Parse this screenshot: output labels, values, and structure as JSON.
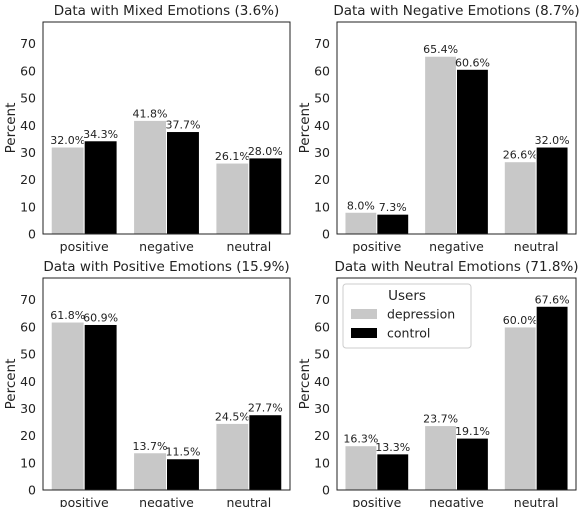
{
  "colors": {
    "depression": "#c8c8c8",
    "control": "#000000",
    "text": "#222222"
  },
  "legend": {
    "title": "Users",
    "items": [
      "depression",
      "control"
    ]
  },
  "chart_data": [
    {
      "type": "bar",
      "title": "Data with Mixed Emotions (3.6%)",
      "ylabel": "Percent",
      "ylim": [
        0,
        78
      ],
      "yticks": [
        0,
        10,
        20,
        30,
        40,
        50,
        60,
        70
      ],
      "categories": [
        "positive",
        "negative",
        "neutral"
      ],
      "series": [
        {
          "name": "depression",
          "values": [
            32.0,
            41.8,
            26.1
          ],
          "labels": [
            "32.0%",
            "41.8%",
            "26.1%"
          ]
        },
        {
          "name": "control",
          "values": [
            34.3,
            37.7,
            28.0
          ],
          "labels": [
            "34.3%",
            "37.7%",
            "28.0%"
          ]
        }
      ],
      "legend": false
    },
    {
      "type": "bar",
      "title": "Data with Negative Emotions (8.7%)",
      "ylabel": "Percent",
      "ylim": [
        0,
        78
      ],
      "yticks": [
        0,
        10,
        20,
        30,
        40,
        50,
        60,
        70
      ],
      "categories": [
        "positive",
        "negative",
        "neutral"
      ],
      "series": [
        {
          "name": "depression",
          "values": [
            8.0,
            65.4,
            26.6
          ],
          "labels": [
            "8.0%",
            "65.4%",
            "26.6%"
          ]
        },
        {
          "name": "control",
          "values": [
            7.3,
            60.6,
            32.0
          ],
          "labels": [
            "7.3%",
            "60.6%",
            "32.0%"
          ]
        }
      ],
      "legend": false
    },
    {
      "type": "bar",
      "title": "Data with Positive Emotions (15.9%)",
      "ylabel": "Percent",
      "ylim": [
        0,
        78
      ],
      "yticks": [
        0,
        10,
        20,
        30,
        40,
        50,
        60,
        70
      ],
      "categories": [
        "positive",
        "negative",
        "neutral"
      ],
      "series": [
        {
          "name": "depression",
          "values": [
            61.8,
            13.7,
            24.5
          ],
          "labels": [
            "61.8%",
            "13.7%",
            "24.5%"
          ]
        },
        {
          "name": "control",
          "values": [
            60.9,
            11.5,
            27.7
          ],
          "labels": [
            "60.9%",
            "11.5%",
            "27.7%"
          ]
        }
      ],
      "legend": false
    },
    {
      "type": "bar",
      "title": "Data with Neutral Emotions (71.8%)",
      "ylabel": "Percent",
      "ylim": [
        0,
        78
      ],
      "yticks": [
        0,
        10,
        20,
        30,
        40,
        50,
        60,
        70
      ],
      "categories": [
        "positive",
        "negative",
        "neutral"
      ],
      "series": [
        {
          "name": "depression",
          "values": [
            16.3,
            23.7,
            60.0
          ],
          "labels": [
            "16.3%",
            "23.7%",
            "60.0%"
          ]
        },
        {
          "name": "control",
          "values": [
            13.3,
            19.1,
            67.6
          ],
          "labels": [
            "13.3%",
            "19.1%",
            "67.6%"
          ]
        }
      ],
      "legend": "upper-left"
    }
  ]
}
